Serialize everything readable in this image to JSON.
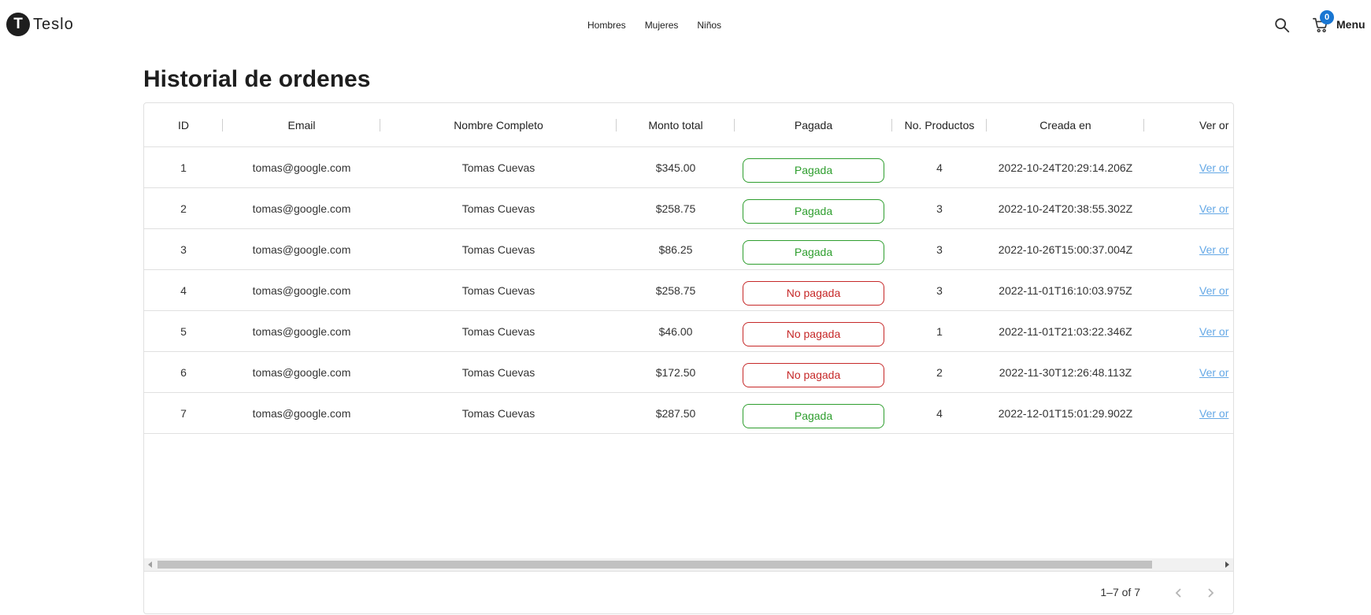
{
  "navbar": {
    "logo_letter": "T",
    "brand": "Teslo",
    "links": [
      "Hombres",
      "Mujeres",
      "Niños"
    ],
    "cart_count": "0",
    "menu_label": "Menu"
  },
  "page": {
    "title": "Historial de ordenes"
  },
  "table": {
    "headers": {
      "id": "ID",
      "email": "Email",
      "name": "Nombre Completo",
      "amount": "Monto total",
      "paid": "Pagada",
      "count": "No. Productos",
      "date": "Creada en",
      "link": "Ver or"
    },
    "rows": [
      {
        "id": "1",
        "email": "tomas@google.com",
        "name": "Tomas Cuevas",
        "amount": "$345.00",
        "paid_label": "Pagada",
        "paid": true,
        "count": "4",
        "date": "2022-10-24T20:29:14.206Z",
        "link": "Ver or"
      },
      {
        "id": "2",
        "email": "tomas@google.com",
        "name": "Tomas Cuevas",
        "amount": "$258.75",
        "paid_label": "Pagada",
        "paid": true,
        "count": "3",
        "date": "2022-10-24T20:38:55.302Z",
        "link": "Ver or"
      },
      {
        "id": "3",
        "email": "tomas@google.com",
        "name": "Tomas Cuevas",
        "amount": "$86.25",
        "paid_label": "Pagada",
        "paid": true,
        "count": "3",
        "date": "2022-10-26T15:00:37.004Z",
        "link": "Ver or"
      },
      {
        "id": "4",
        "email": "tomas@google.com",
        "name": "Tomas Cuevas",
        "amount": "$258.75",
        "paid_label": "No pagada",
        "paid": false,
        "count": "3",
        "date": "2022-11-01T16:10:03.975Z",
        "link": "Ver or"
      },
      {
        "id": "5",
        "email": "tomas@google.com",
        "name": "Tomas Cuevas",
        "amount": "$46.00",
        "paid_label": "No pagada",
        "paid": false,
        "count": "1",
        "date": "2022-11-01T21:03:22.346Z",
        "link": "Ver or"
      },
      {
        "id": "6",
        "email": "tomas@google.com",
        "name": "Tomas Cuevas",
        "amount": "$172.50",
        "paid_label": "No pagada",
        "paid": false,
        "count": "2",
        "date": "2022-11-30T12:26:48.113Z",
        "link": "Ver or"
      },
      {
        "id": "7",
        "email": "tomas@google.com",
        "name": "Tomas Cuevas",
        "amount": "$287.50",
        "paid_label": "Pagada",
        "paid": true,
        "count": "4",
        "date": "2022-12-01T15:01:29.902Z",
        "link": "Ver or"
      }
    ]
  },
  "pagination": {
    "info": "1–7 of 7"
  },
  "colors": {
    "paid": "#2e9e2e",
    "unpaid": "#c62828",
    "accent": "#1976d2",
    "link": "#64a8e6"
  },
  "icons": {
    "search": "search-icon",
    "cart": "cart-icon",
    "prev": "chevron-left-icon",
    "next": "chevron-right-icon"
  }
}
